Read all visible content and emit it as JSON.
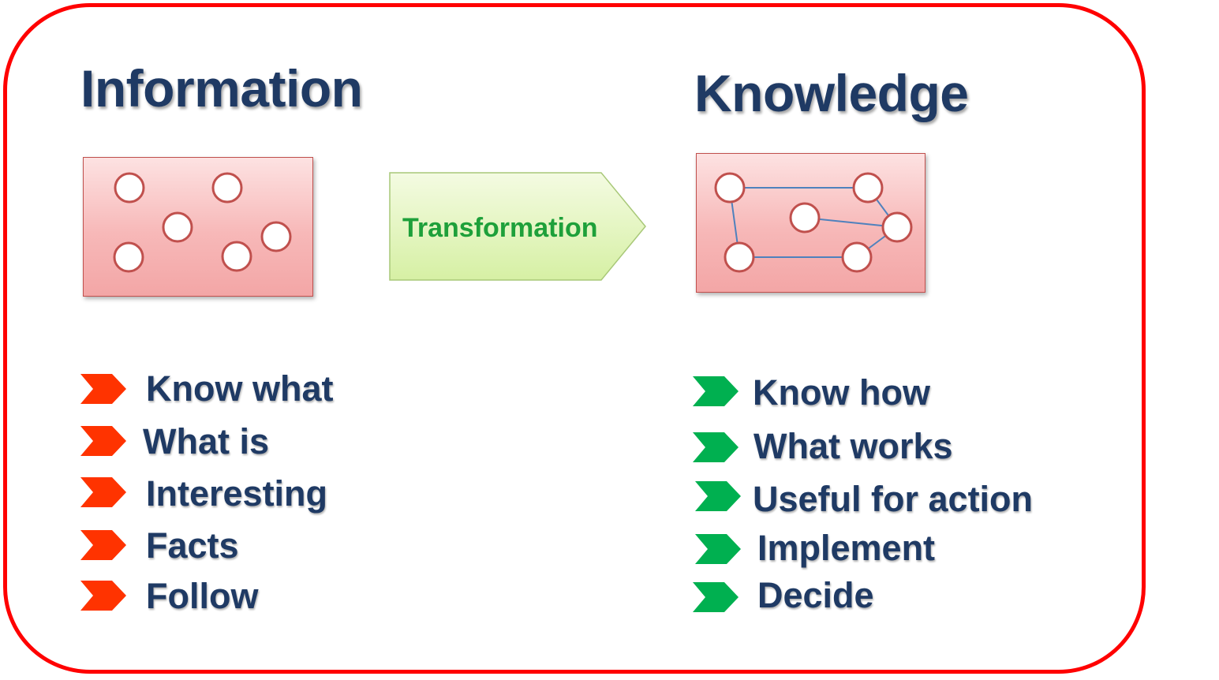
{
  "information": {
    "title": "Information",
    "items": [
      "Know what",
      "What is",
      "Interesting",
      "Facts",
      "Follow"
    ],
    "bullet_color": "#ff3300"
  },
  "transformation": {
    "label": "Transformation"
  },
  "knowledge": {
    "title": "Knowledge",
    "items": [
      "Know how",
      "What works",
      "Useful for action",
      "Implement",
      "Decide"
    ],
    "bullet_color": "#00b050"
  },
  "colors": {
    "frame": "#ff0000",
    "heading": "#1f3a64",
    "node_stroke": "#c0504d",
    "edge": "#4f81bd"
  }
}
